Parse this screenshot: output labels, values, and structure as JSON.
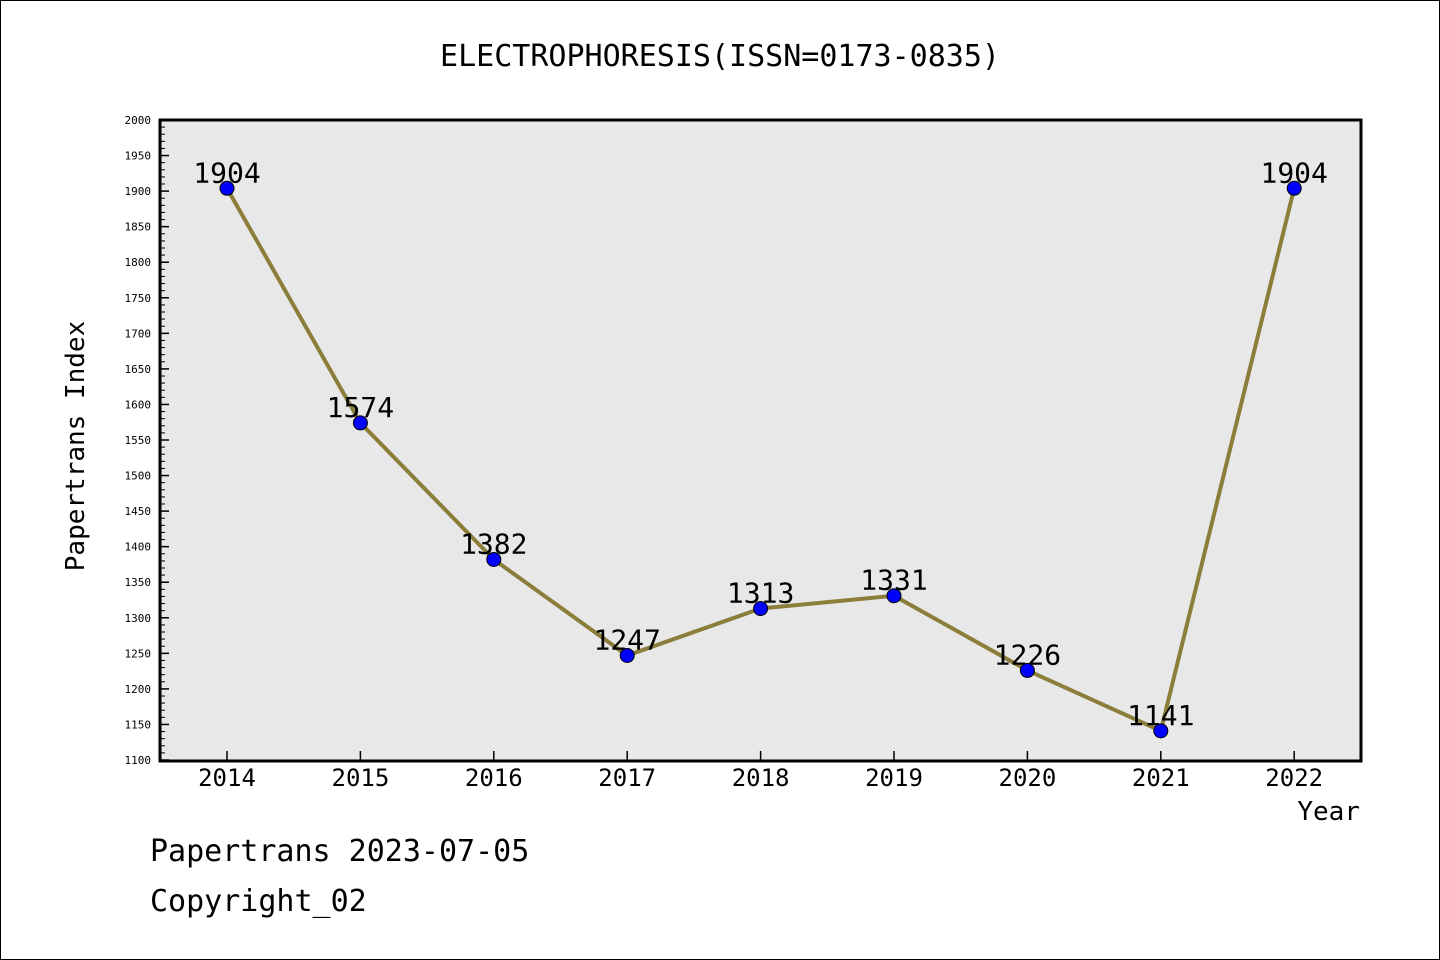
{
  "chart_data": {
    "type": "line",
    "title": "ELECTROPHORESIS(ISSN=0173-0835)",
    "xlabel": "Year",
    "ylabel": "Papertrans Index",
    "categories": [
      "2014",
      "2015",
      "2016",
      "2017",
      "2018",
      "2019",
      "2020",
      "2021",
      "2022"
    ],
    "series": [
      {
        "values": [
          1904,
          1574,
          1382,
          1247,
          1313,
          1331,
          1226,
          1141,
          1904
        ],
        "labels": [
          "1904",
          "1574",
          "1382",
          "1247",
          "1313",
          "1331",
          "1226",
          "1141",
          "1904"
        ]
      }
    ],
    "ylim": [
      1100,
      2000
    ],
    "yticks": [
      "1100",
      "1150",
      "1200",
      "1250",
      "1300",
      "1350",
      "1400",
      "1450",
      "1500",
      "1550",
      "1600",
      "1650",
      "1700",
      "1750",
      "1800",
      "1850",
      "1900",
      "1950",
      "2000"
    ],
    "grid": false,
    "legend": "none",
    "colors": {
      "plot_background": "#e8e8e8",
      "line": "#8b7d3a",
      "marker": "#0000ff"
    }
  },
  "footer": {
    "line1": "Papertrans 2023-07-05",
    "line2": "Copyright_02"
  }
}
